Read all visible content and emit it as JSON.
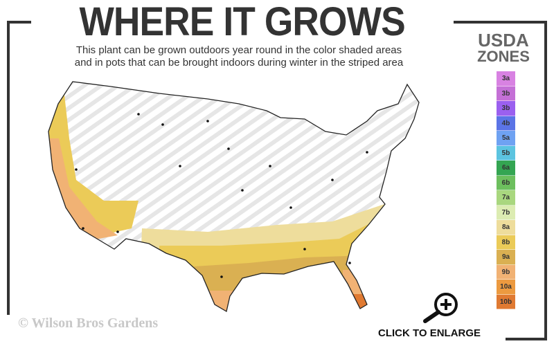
{
  "header": {
    "title": "WHERE IT GROWS",
    "subtitle_line1": "This plant can be grown outdoors year round in the color shaded areas",
    "subtitle_line2": "and in pots that can be brought indoors during winter in the striped area"
  },
  "legend": {
    "title_line1": "USDA",
    "title_line2": "ZONES",
    "zones": [
      {
        "label": "3a",
        "color": "#d882e2"
      },
      {
        "label": "3b",
        "color": "#c470d6"
      },
      {
        "label": "3b",
        "color": "#9b60ef"
      },
      {
        "label": "4b",
        "color": "#5b74e6"
      },
      {
        "label": "5a",
        "color": "#6fa2f2"
      },
      {
        "label": "5b",
        "color": "#5cc4e0"
      },
      {
        "label": "6a",
        "color": "#34a552"
      },
      {
        "label": "6b",
        "color": "#6dbf5e"
      },
      {
        "label": "7a",
        "color": "#a9d77f"
      },
      {
        "label": "7b",
        "color": "#dcecb2"
      },
      {
        "label": "8a",
        "color": "#eedd9c"
      },
      {
        "label": "8b",
        "color": "#ebcb58"
      },
      {
        "label": "9a",
        "color": "#dab052"
      },
      {
        "label": "9b",
        "color": "#f1b274"
      },
      {
        "label": "10a",
        "color": "#ec9a40"
      },
      {
        "label": "10b",
        "color": "#e07a32"
      }
    ]
  },
  "footer": {
    "copyright": "© Wilson Bros Gardens",
    "enlarge_label": "CLICK TO ENLARGE",
    "zoom_icon": "magnifier-plus-icon"
  }
}
